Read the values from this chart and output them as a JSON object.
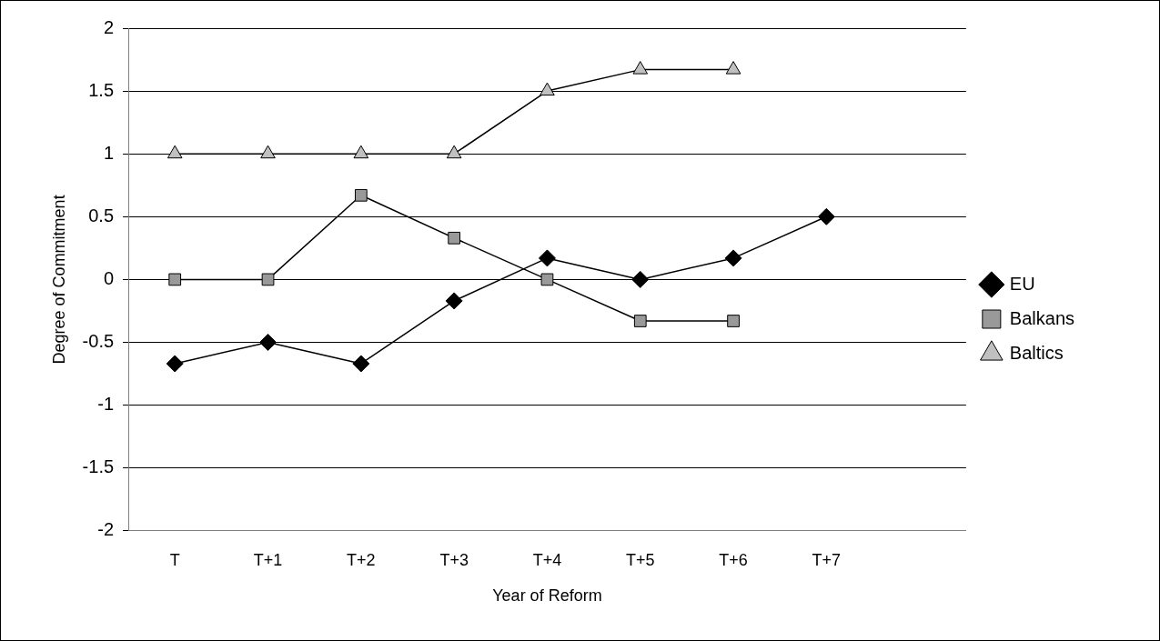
{
  "chart_data": {
    "type": "line",
    "xlabel": "Year of Reform",
    "ylabel": "Degree of Commitment",
    "categories": [
      "T",
      "T+1",
      "T+2",
      "T+3",
      "T+4",
      "T+5",
      "T+6",
      "T+7",
      null
    ],
    "series": [
      {
        "name": "EU",
        "color": "#000000",
        "marker": "diamond",
        "values": [
          -0.67,
          -0.5,
          -0.67,
          -0.17,
          0.17,
          0,
          0.17,
          0.5,
          null
        ]
      },
      {
        "name": "Balkans",
        "color": "#999999",
        "marker": "square",
        "values": [
          0,
          0,
          0.67,
          0.33,
          0,
          -0.33,
          -0.33,
          null,
          null
        ]
      },
      {
        "name": "Baltics",
        "color": "#c0c0c0",
        "marker": "triangle",
        "values": [
          1,
          1,
          1,
          1,
          1.5,
          1.67,
          1.67,
          null,
          null
        ]
      }
    ],
    "ylim": [
      -2,
      2
    ],
    "yticks": [
      -2,
      -1.5,
      -1,
      -0.5,
      0,
      0.5,
      1,
      1.5,
      2
    ],
    "grid": "y",
    "legend": "right"
  }
}
